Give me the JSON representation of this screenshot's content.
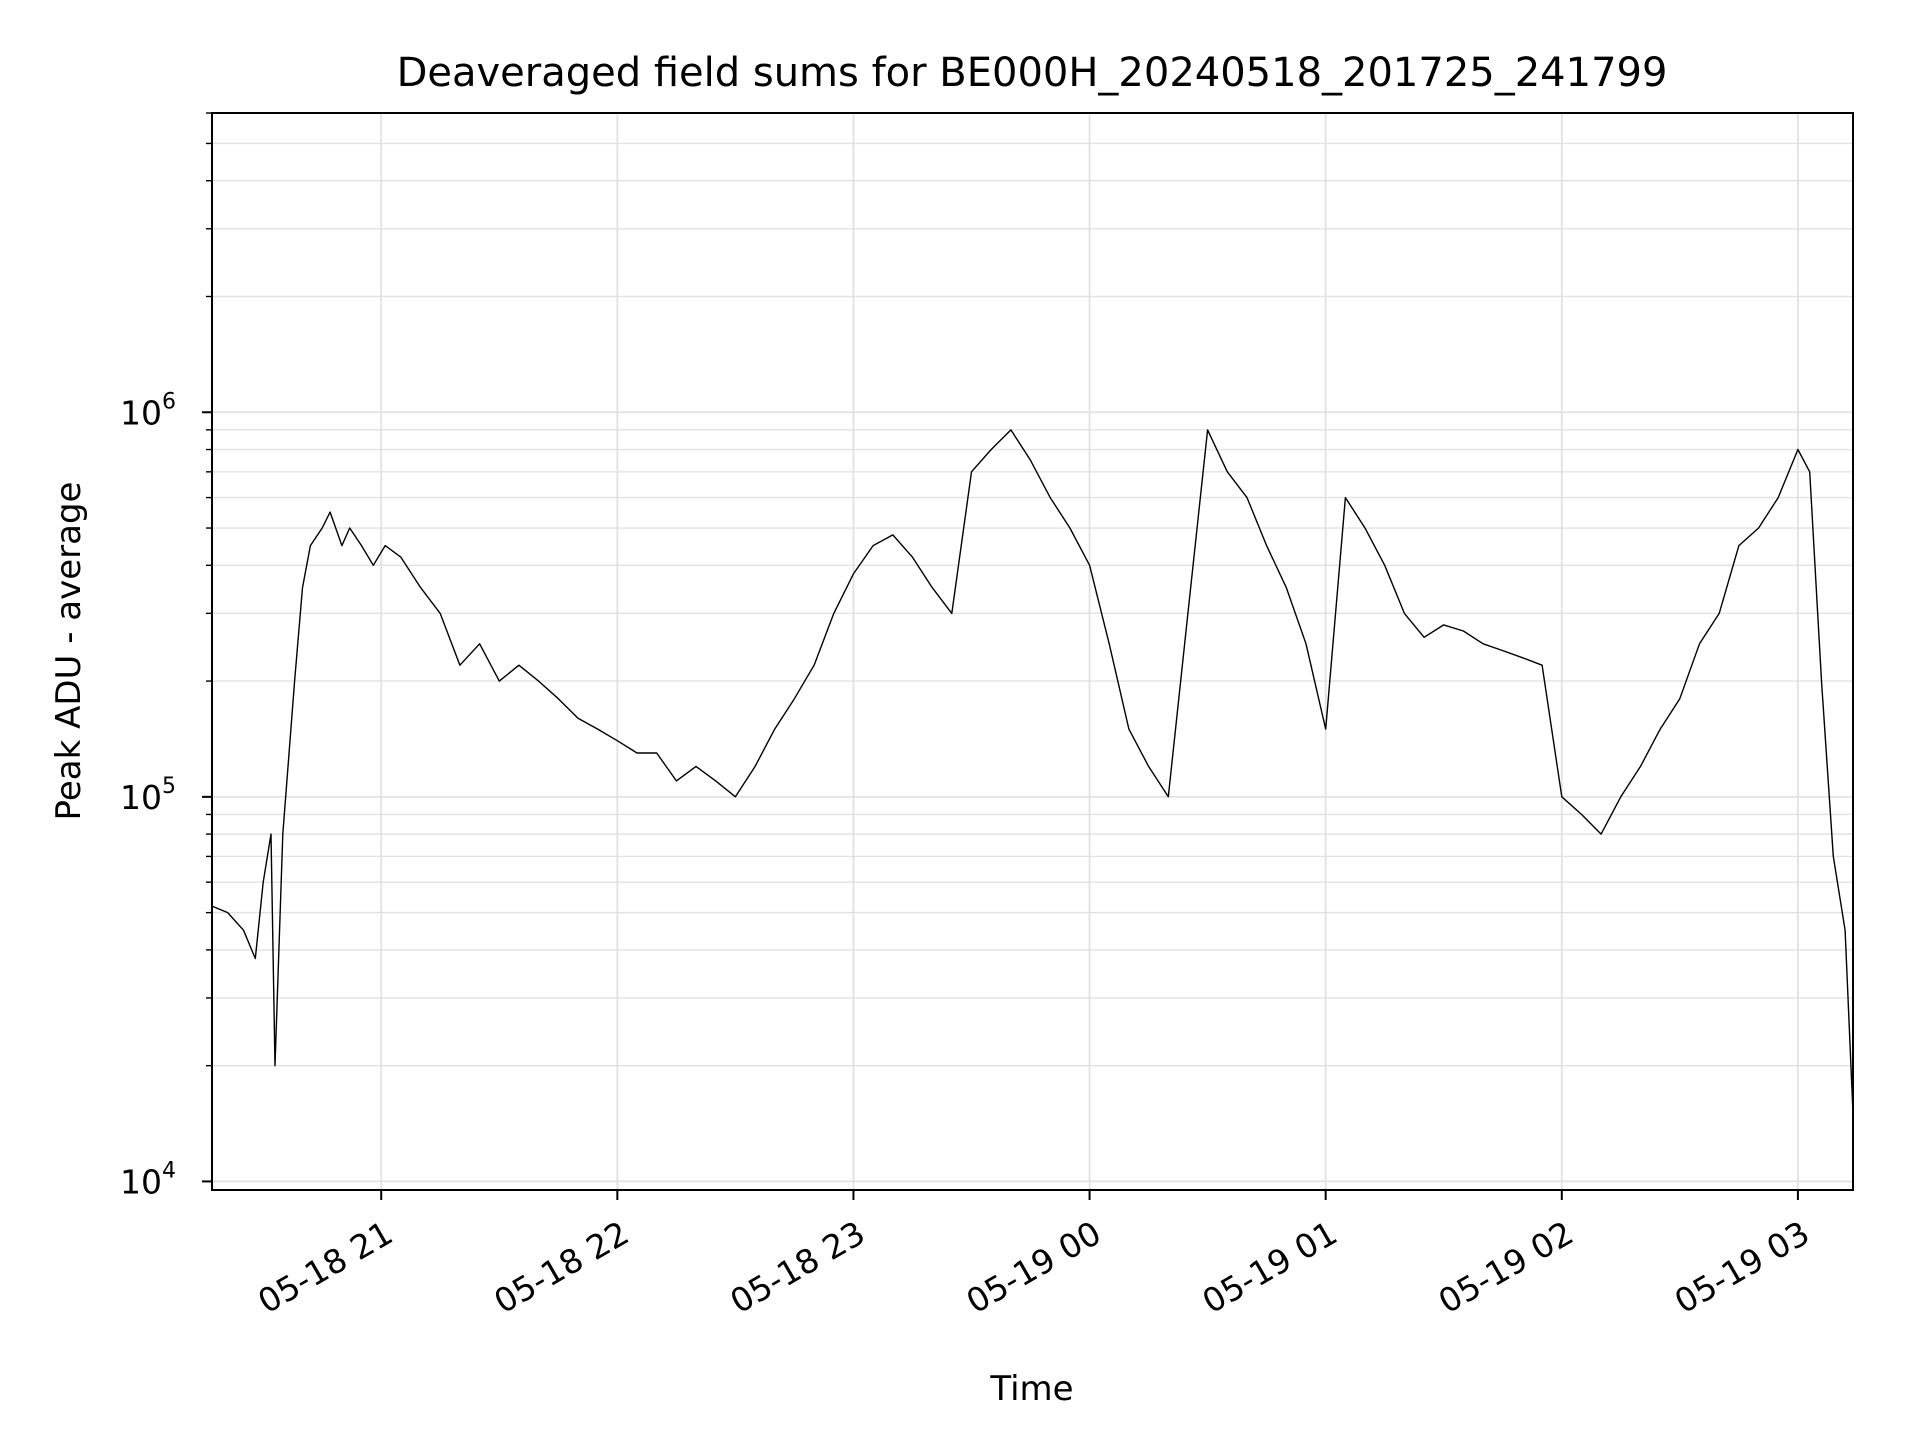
{
  "chart_data": {
    "type": "line",
    "title": "Deaveraged field sums for BE000H_20240518_201725_241799",
    "xlabel": "Time",
    "ylabel": "Peak ADU - average",
    "y_scale": "log",
    "ylim": [
      9500,
      6000000
    ],
    "xlim": [
      "2024-05-18 20:17",
      "2024-05-19 03:14"
    ],
    "grid": true,
    "line_color": "#000000",
    "x_ticks": [
      {
        "value": "2024-05-18 21:00",
        "label": "05-18 21"
      },
      {
        "value": "2024-05-18 22:00",
        "label": "05-18 22"
      },
      {
        "value": "2024-05-18 23:00",
        "label": "05-18 23"
      },
      {
        "value": "2024-05-19 00:00",
        "label": "05-19 00"
      },
      {
        "value": "2024-05-19 01:00",
        "label": "05-19 01"
      },
      {
        "value": "2024-05-19 02:00",
        "label": "05-19 02"
      },
      {
        "value": "2024-05-19 03:00",
        "label": "05-19 03"
      }
    ],
    "y_ticks": [
      {
        "value": 10000,
        "base": "10",
        "exp": "4"
      },
      {
        "value": 100000,
        "base": "10",
        "exp": "5"
      },
      {
        "value": 1000000,
        "base": "10",
        "exp": "6"
      }
    ],
    "series": [
      {
        "x": [
          "2024-05-18 20:17",
          "2024-05-18 20:21",
          "2024-05-18 20:25",
          "2024-05-18 20:28",
          "2024-05-18 20:30",
          "2024-05-18 20:32",
          "2024-05-18 20:33",
          "2024-05-18 20:35",
          "2024-05-18 20:38",
          "2024-05-18 20:40",
          "2024-05-18 20:42",
          "2024-05-18 20:45",
          "2024-05-18 20:47",
          "2024-05-18 20:50",
          "2024-05-18 20:52",
          "2024-05-18 20:55",
          "2024-05-18 20:58",
          "2024-05-18 21:01",
          "2024-05-18 21:05",
          "2024-05-18 21:10",
          "2024-05-18 21:15",
          "2024-05-18 21:20",
          "2024-05-18 21:25",
          "2024-05-18 21:30",
          "2024-05-18 21:35",
          "2024-05-18 21:40",
          "2024-05-18 21:45",
          "2024-05-18 21:50",
          "2024-05-18 21:55",
          "2024-05-18 22:00",
          "2024-05-18 22:05",
          "2024-05-18 22:10",
          "2024-05-18 22:15",
          "2024-05-18 22:20",
          "2024-05-18 22:25",
          "2024-05-18 22:30",
          "2024-05-18 22:35",
          "2024-05-18 22:40",
          "2024-05-18 22:45",
          "2024-05-18 22:50",
          "2024-05-18 22:55",
          "2024-05-18 23:00",
          "2024-05-18 23:05",
          "2024-05-18 23:10",
          "2024-05-18 23:15",
          "2024-05-18 23:20",
          "2024-05-18 23:25",
          "2024-05-18 23:30",
          "2024-05-18 23:35",
          "2024-05-18 23:40",
          "2024-05-18 23:45",
          "2024-05-18 23:50",
          "2024-05-18 23:55",
          "2024-05-19 00:00",
          "2024-05-19 00:05",
          "2024-05-19 00:10",
          "2024-05-19 00:15",
          "2024-05-19 00:20",
          "2024-05-19 00:25",
          "2024-05-19 00:30",
          "2024-05-19 00:35",
          "2024-05-19 00:40",
          "2024-05-19 00:45",
          "2024-05-19 00:50",
          "2024-05-19 00:55",
          "2024-05-19 01:00",
          "2024-05-19 01:05",
          "2024-05-19 01:10",
          "2024-05-19 01:15",
          "2024-05-19 01:20",
          "2024-05-19 01:25",
          "2024-05-19 01:30",
          "2024-05-19 01:35",
          "2024-05-19 01:40",
          "2024-05-19 01:45",
          "2024-05-19 01:50",
          "2024-05-19 01:55",
          "2024-05-19 02:00",
          "2024-05-19 02:05",
          "2024-05-19 02:10",
          "2024-05-19 02:15",
          "2024-05-19 02:20",
          "2024-05-19 02:25",
          "2024-05-19 02:30",
          "2024-05-19 02:35",
          "2024-05-19 02:40",
          "2024-05-19 02:45",
          "2024-05-19 02:50",
          "2024-05-19 02:55",
          "2024-05-19 03:00",
          "2024-05-19 03:03",
          "2024-05-19 03:06",
          "2024-05-19 03:09",
          "2024-05-19 03:12",
          "2024-05-19 03:14"
        ],
        "y": [
          52000,
          50000,
          45000,
          38000,
          60000,
          80000,
          20000,
          80000,
          200000,
          350000,
          450000,
          500000,
          550000,
          450000,
          500000,
          450000,
          400000,
          450000,
          420000,
          350000,
          300000,
          220000,
          250000,
          200000,
          220000,
          200000,
          180000,
          160000,
          150000,
          140000,
          130000,
          130000,
          110000,
          120000,
          110000,
          100000,
          120000,
          150000,
          180000,
          220000,
          300000,
          380000,
          450000,
          480000,
          420000,
          350000,
          300000,
          700000,
          800000,
          900000,
          750000,
          600000,
          500000,
          400000,
          250000,
          150000,
          120000,
          100000,
          300000,
          900000,
          700000,
          600000,
          450000,
          350000,
          250000,
          150000,
          600000,
          500000,
          400000,
          300000,
          260000,
          280000,
          270000,
          250000,
          240000,
          230000,
          220000,
          100000,
          90000,
          80000,
          100000,
          120000,
          150000,
          180000,
          250000,
          300000,
          450000,
          500000,
          600000,
          800000,
          700000,
          200000,
          70000,
          45000,
          15000
        ]
      }
    ]
  }
}
